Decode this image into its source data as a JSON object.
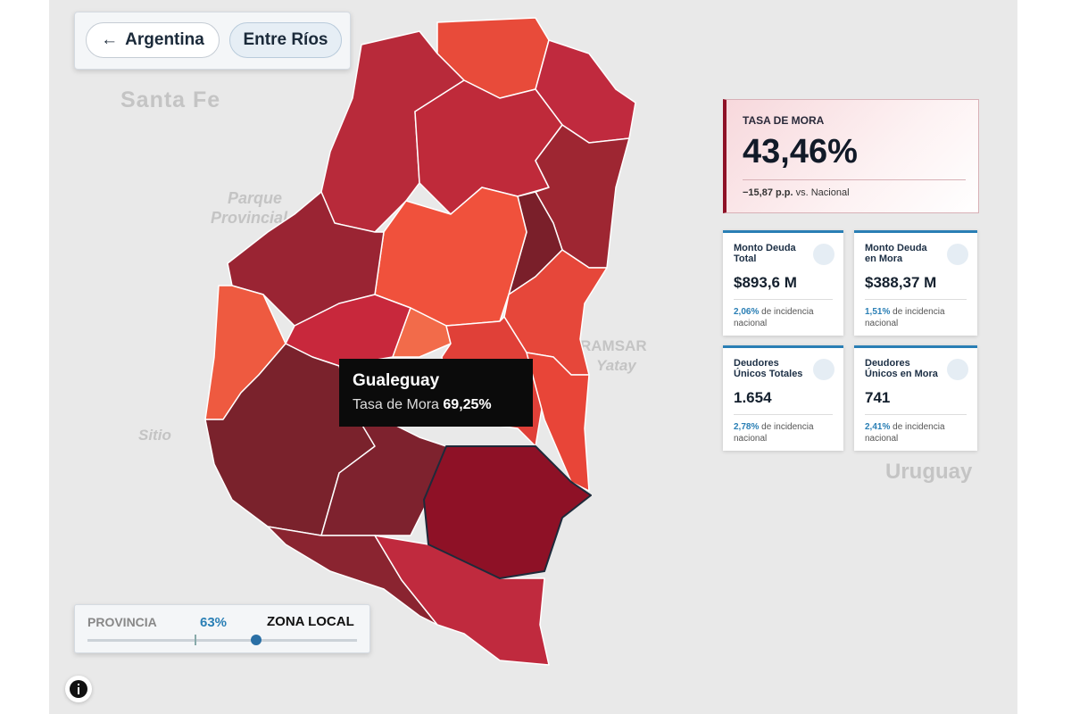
{
  "breadcrumb": {
    "back": "Argentina",
    "current": "Entre Ríos"
  },
  "map_labels": [
    "Santa Fe",
    "Parque",
    "Provincial",
    "Sitio",
    "RAMSAR",
    "Yatay",
    "Uruguay"
  ],
  "tooltip": {
    "title": "Gualeguay",
    "label": "Tasa de Mora",
    "value": "69,25%"
  },
  "summary": {
    "label": "TASA DE MORA",
    "value": "43,46%",
    "delta": "−15,87 p.p.",
    "delta_suffix": "vs. Nacional"
  },
  "cards": [
    {
      "title": "Monto Deuda Total",
      "value": "$893,6 M",
      "share": "2,06%",
      "share_suffix": "de incidencia nacional"
    },
    {
      "title": "Monto Deuda en Mora",
      "value": "$388,37 M",
      "share": "1,51%",
      "share_suffix": "de incidencia nacional"
    },
    {
      "title": "Deudores Únicos Totales",
      "value": "1.654",
      "share": "2,78%",
      "share_suffix": "de incidencia nacional"
    },
    {
      "title": "Deudores Únicos en Mora",
      "value": "741",
      "share": "2,41%",
      "share_suffix": "de incidencia nacional"
    }
  ],
  "slider": {
    "left": "PROVINCIA",
    "value": "63%",
    "right": "ZONA LOCAL"
  }
}
